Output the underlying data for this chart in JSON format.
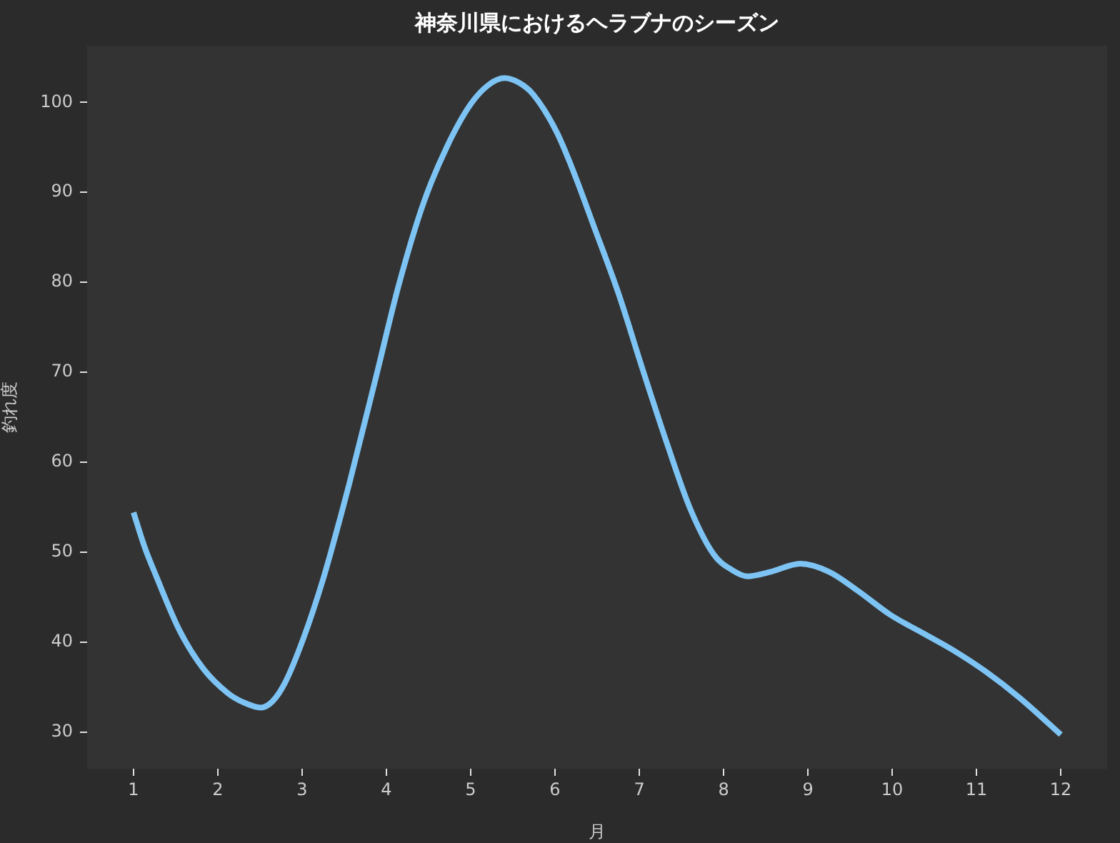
{
  "chart_data": {
    "type": "line",
    "title": "神奈川県におけるヘラブナのシーズン",
    "xlabel": "月",
    "ylabel": "釣れ度",
    "color": "#7dc4f4",
    "x": [
      1.0,
      1.13,
      1.27,
      1.55,
      1.83,
      2.12,
      2.3,
      2.51,
      2.65,
      2.8,
      3.02,
      3.25,
      3.47,
      3.56,
      3.87,
      4.15,
      4.44,
      4.72,
      5.0,
      5.22,
      5.4,
      5.57,
      5.74,
      6.02,
      6.19,
      6.47,
      6.755,
      7.04,
      7.32,
      7.6,
      7.885,
      8.1,
      8.28,
      8.56,
      8.91,
      9.25,
      9.59,
      9.98,
      10.38,
      10.72,
      11.11,
      11.51,
      12.0
    ],
    "values": [
      54.4,
      50.6,
      47.3,
      41.2,
      37.0,
      34.3,
      33.3,
      32.7,
      33.4,
      35.5,
      40.5,
      47.0,
      54.4,
      57.6,
      69.2,
      79.8,
      88.8,
      95.1,
      99.8,
      102.0,
      102.7,
      102.2,
      100.9,
      96.7,
      93.0,
      86.0,
      78.7,
      70.3,
      62.3,
      54.9,
      49.7,
      48.0,
      47.3,
      47.8,
      48.7,
      47.8,
      45.7,
      43.0,
      40.9,
      39.1,
      36.7,
      33.8,
      29.7
    ],
    "xlim": [
      0.45,
      12.55
    ],
    "xticks": [
      1,
      2,
      3,
      4,
      5,
      6,
      7,
      8,
      9,
      10,
      11,
      12
    ],
    "ylim": [
      25.9,
      106.3
    ],
    "yticks": [
      30,
      40,
      50,
      60,
      70,
      80,
      90,
      100
    ]
  }
}
